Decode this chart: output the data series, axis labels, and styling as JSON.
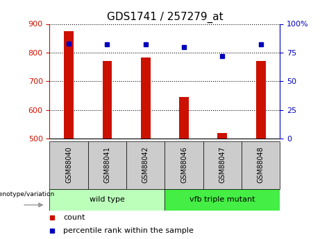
{
  "title": "GDS1741 / 257279_at",
  "categories": [
    "GSM88040",
    "GSM88041",
    "GSM88042",
    "GSM88046",
    "GSM88047",
    "GSM88048"
  ],
  "counts": [
    875,
    770,
    783,
    645,
    520,
    770
  ],
  "percentiles": [
    83,
    82,
    82,
    80,
    72,
    82
  ],
  "ylim_left": [
    500,
    900
  ],
  "ylim_right": [
    0,
    100
  ],
  "yticks_left": [
    500,
    600,
    700,
    800,
    900
  ],
  "yticks_right": [
    0,
    25,
    50,
    75,
    100
  ],
  "bar_color": "#cc1100",
  "dot_color": "#0000bb",
  "group1_label": "wild type",
  "group2_label": "vfb triple mutant",
  "group1_color": "#bbffbb",
  "group2_color": "#44ee44",
  "legend_count_label": "count",
  "legend_percentile_label": "percentile rank within the sample",
  "genotype_label": "genotype/variation",
  "bar_width": 0.25,
  "title_fontsize": 11,
  "tick_fontsize": 8,
  "right_tick_color": "#0000bb",
  "left_tick_color": "#cc1100",
  "grid_color": "#000000",
  "grid_linestyle": "dotted",
  "grid_linewidth": 0.8,
  "xtick_box_color": "#cccccc",
  "arrow_color": "#999999"
}
